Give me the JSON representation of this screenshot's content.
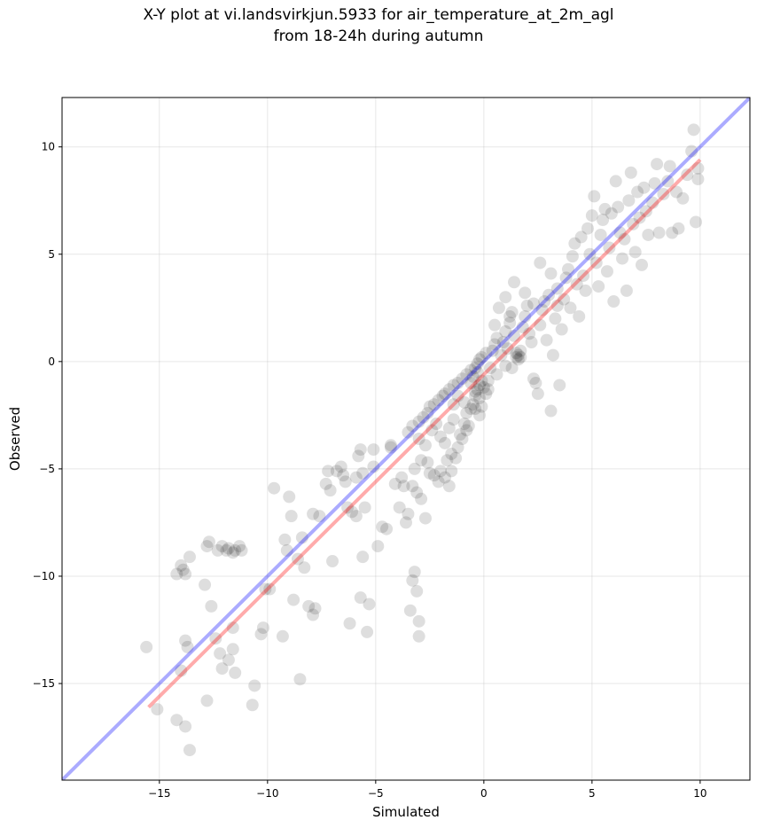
{
  "chart_data": {
    "type": "scatter",
    "title": "X-Y plot at vi.landsvirkjun.5933 for air_temperature_at_2m_agl",
    "subtitle": "from 18-24h during autumn",
    "xlabel": "Simulated",
    "ylabel": "Observed",
    "xlim": [
      -19.5,
      12.3
    ],
    "ylim": [
      -19.5,
      12.3
    ],
    "xticks": [
      -15,
      -10,
      -5,
      0,
      5,
      10
    ],
    "yticks": [
      -15,
      -10,
      -5,
      0,
      5,
      10
    ],
    "xtick_labels": [
      "−15",
      "−10",
      "−5",
      "0",
      "5",
      "10"
    ],
    "ytick_labels": [
      "−15",
      "−10",
      "−5",
      "0",
      "5",
      "10"
    ],
    "grid": true,
    "point_color": "#000000",
    "point_alpha": 0.13,
    "lines": [
      {
        "name": "1:1",
        "color": "#0000ff",
        "x": [
          -19.5,
          12.3
        ],
        "y": [
          -19.5,
          12.3
        ]
      },
      {
        "name": "fit",
        "color": "#ff0000",
        "x": [
          -15.5,
          10
        ],
        "y": [
          -16.1,
          9.4
        ]
      }
    ],
    "points": [
      [
        -15.6,
        -13.3
      ],
      [
        -15.1,
        -16.2
      ],
      [
        -14.2,
        -9.9
      ],
      [
        -14.0,
        -9.5
      ],
      [
        -13.9,
        -9.7
      ],
      [
        -13.8,
        -9.9
      ],
      [
        -13.6,
        -9.1
      ],
      [
        -14.0,
        -14.4
      ],
      [
        -13.8,
        -13.0
      ],
      [
        -13.7,
        -13.3
      ],
      [
        -14.2,
        -16.7
      ],
      [
        -13.8,
        -17.0
      ],
      [
        -13.6,
        -18.1
      ],
      [
        -12.9,
        -10.4
      ],
      [
        -12.8,
        -8.6
      ],
      [
        -12.7,
        -8.4
      ],
      [
        -12.6,
        -11.4
      ],
      [
        -12.4,
        -12.9
      ],
      [
        -12.3,
        -8.8
      ],
      [
        -12.1,
        -8.6
      ],
      [
        -11.9,
        -8.8
      ],
      [
        -11.8,
        -8.7
      ],
      [
        -11.6,
        -8.9
      ],
      [
        -11.5,
        -8.8
      ],
      [
        -11.3,
        -8.6
      ],
      [
        -11.2,
        -8.8
      ],
      [
        -12.2,
        -13.6
      ],
      [
        -12.1,
        -14.3
      ],
      [
        -11.8,
        -13.9
      ],
      [
        -11.6,
        -13.4
      ],
      [
        -11.5,
        -14.5
      ],
      [
        -11.6,
        -12.4
      ],
      [
        -12.8,
        -15.8
      ],
      [
        -10.7,
        -16.0
      ],
      [
        -10.6,
        -15.1
      ],
      [
        -10.3,
        -12.7
      ],
      [
        -10.2,
        -12.4
      ],
      [
        -10.1,
        -10.6
      ],
      [
        -9.9,
        -10.6
      ],
      [
        -9.7,
        -5.9
      ],
      [
        -9.3,
        -12.8
      ],
      [
        -9.2,
        -8.3
      ],
      [
        -9.1,
        -8.8
      ],
      [
        -9.0,
        -6.3
      ],
      [
        -8.9,
        -7.2
      ],
      [
        -8.8,
        -11.1
      ],
      [
        -8.6,
        -9.2
      ],
      [
        -8.5,
        -14.8
      ],
      [
        -8.4,
        -8.2
      ],
      [
        -8.3,
        -9.6
      ],
      [
        -8.1,
        -11.4
      ],
      [
        -7.9,
        -11.8
      ],
      [
        -7.8,
        -11.5
      ],
      [
        -7.9,
        -7.1
      ],
      [
        -7.6,
        -7.2
      ],
      [
        -7.3,
        -5.7
      ],
      [
        -7.2,
        -5.1
      ],
      [
        -7.1,
        -6.0
      ],
      [
        -7.0,
        -9.3
      ],
      [
        -6.8,
        -5.1
      ],
      [
        -6.6,
        -4.9
      ],
      [
        -6.5,
        -5.3
      ],
      [
        -6.4,
        -5.6
      ],
      [
        -6.2,
        -12.2
      ],
      [
        -6.1,
        -7.0
      ],
      [
        -5.9,
        -5.4
      ],
      [
        -5.8,
        -4.4
      ],
      [
        -5.7,
        -4.1
      ],
      [
        -5.6,
        -5.2
      ],
      [
        -5.5,
        -6.8
      ],
      [
        -5.3,
        -11.3
      ],
      [
        -5.4,
        -12.6
      ],
      [
        -5.6,
        -9.1
      ],
      [
        -5.7,
        -11.0
      ],
      [
        -5.1,
        -4.1
      ],
      [
        -4.9,
        -8.6
      ],
      [
        -4.7,
        -7.7
      ],
      [
        -4.5,
        -7.8
      ],
      [
        -4.3,
        -3.9
      ],
      [
        -4.1,
        -5.7
      ],
      [
        -3.9,
        -6.8
      ],
      [
        -3.8,
        -5.4
      ],
      [
        -3.7,
        -5.8
      ],
      [
        -3.6,
        -7.5
      ],
      [
        -3.5,
        -7.1
      ],
      [
        -3.4,
        -11.6
      ],
      [
        -3.3,
        -10.2
      ],
      [
        -3.2,
        -9.8
      ],
      [
        -3.1,
        -10.7
      ],
      [
        -3.0,
        -12.1
      ],
      [
        -3.0,
        -12.8
      ],
      [
        -3.2,
        -5.0
      ],
      [
        -3.3,
        -5.8
      ],
      [
        -3.1,
        -6.1
      ],
      [
        -2.9,
        -6.4
      ],
      [
        -2.7,
        -7.3
      ],
      [
        -2.5,
        -5.2
      ],
      [
        -2.6,
        -4.7
      ],
      [
        -2.3,
        -5.3
      ],
      [
        -2.1,
        -5.6
      ],
      [
        -2.0,
        -5.1
      ],
      [
        -1.8,
        -5.4
      ],
      [
        -1.6,
        -5.8
      ],
      [
        -1.5,
        -5.1
      ],
      [
        -3.5,
        -3.3
      ],
      [
        -3.3,
        -3.0
      ],
      [
        -3.0,
        -2.8
      ],
      [
        -2.8,
        -2.6
      ],
      [
        -2.6,
        -2.4
      ],
      [
        -2.5,
        -2.1
      ],
      [
        -2.3,
        -2.0
      ],
      [
        -2.1,
        -1.8
      ],
      [
        -1.9,
        -1.6
      ],
      [
        -1.8,
        -1.5
      ],
      [
        -1.6,
        -1.3
      ],
      [
        -1.4,
        -1.1
      ],
      [
        -1.2,
        -1.0
      ],
      [
        -1.0,
        -0.8
      ],
      [
        -0.8,
        -0.6
      ],
      [
        -0.6,
        -0.4
      ],
      [
        -0.4,
        -0.3
      ],
      [
        -0.3,
        -0.1
      ],
      [
        -0.2,
        0.1
      ],
      [
        -0.1,
        0.2
      ],
      [
        0.1,
        0.4
      ],
      [
        -3.0,
        -3.6
      ],
      [
        -2.7,
        -3.9
      ],
      [
        -2.4,
        -3.2
      ],
      [
        -2.2,
        -2.9
      ],
      [
        -2.0,
        -3.5
      ],
      [
        -1.8,
        -3.8
      ],
      [
        -1.6,
        -3.1
      ],
      [
        -1.4,
        -2.7
      ],
      [
        -1.2,
        -4.0
      ],
      [
        -1.1,
        -3.4
      ],
      [
        -0.9,
        -2.9
      ],
      [
        -0.8,
        -2.4
      ],
      [
        -0.7,
        -3.0
      ],
      [
        -0.6,
        -2.2
      ],
      [
        -0.5,
        -2.0
      ],
      [
        -0.4,
        -1.6
      ],
      [
        -0.3,
        -1.3
      ],
      [
        -0.2,
        -1.1
      ],
      [
        -0.1,
        -0.9
      ],
      [
        0.0,
        -1.2
      ],
      [
        -1.7,
        -4.6
      ],
      [
        -1.5,
        -4.3
      ],
      [
        -1.3,
        -4.5
      ],
      [
        -1.0,
        -3.6
      ],
      [
        -0.8,
        -3.2
      ],
      [
        -0.6,
        -1.0
      ],
      [
        -0.5,
        -0.7
      ],
      [
        -0.4,
        -1.4
      ],
      [
        -0.3,
        -0.5
      ],
      [
        -0.2,
        -1.7
      ],
      [
        -0.1,
        -2.1
      ],
      [
        0.1,
        -1.5
      ],
      [
        0.2,
        -0.9
      ],
      [
        0.3,
        -0.3
      ],
      [
        0.4,
        0.5
      ],
      [
        0.5,
        0.8
      ],
      [
        0.6,
        1.1
      ],
      [
        0.8,
        0.3
      ],
      [
        0.9,
        0.9
      ],
      [
        1.0,
        1.4
      ],
      [
        1.1,
        0.6
      ],
      [
        1.2,
        1.8
      ],
      [
        1.3,
        2.3
      ],
      [
        1.4,
        1.2
      ],
      [
        1.5,
        0.2
      ],
      [
        1.5,
        0.4
      ],
      [
        1.6,
        0.1
      ],
      [
        1.6,
        0.3
      ],
      [
        1.7,
        0.5
      ],
      [
        1.7,
        0.2
      ],
      [
        1.8,
        1.6
      ],
      [
        1.9,
        2.1
      ],
      [
        2.0,
        2.6
      ],
      [
        2.1,
        1.3
      ],
      [
        2.2,
        0.9
      ],
      [
        2.3,
        -0.8
      ],
      [
        2.4,
        -1.0
      ],
      [
        2.5,
        -1.5
      ],
      [
        2.6,
        1.7
      ],
      [
        2.7,
        2.4
      ],
      [
        2.8,
        2.8
      ],
      [
        2.9,
        1.0
      ],
      [
        3.0,
        3.1
      ],
      [
        3.1,
        -2.3
      ],
      [
        3.2,
        0.3
      ],
      [
        3.3,
        2.0
      ],
      [
        3.4,
        3.4
      ],
      [
        3.5,
        -1.1
      ],
      [
        3.6,
        1.5
      ],
      [
        3.7,
        2.9
      ],
      [
        3.8,
        3.9
      ],
      [
        3.9,
        4.3
      ],
      [
        4.0,
        2.5
      ],
      [
        4.1,
        4.9
      ],
      [
        4.2,
        5.5
      ],
      [
        4.3,
        3.6
      ],
      [
        4.4,
        2.1
      ],
      [
        4.5,
        5.8
      ],
      [
        4.6,
        4.0
      ],
      [
        4.7,
        3.3
      ],
      [
        4.8,
        6.2
      ],
      [
        4.9,
        5.0
      ],
      [
        5.0,
        6.8
      ],
      [
        5.1,
        7.7
      ],
      [
        5.2,
        4.6
      ],
      [
        5.3,
        3.5
      ],
      [
        5.4,
        5.9
      ],
      [
        5.5,
        6.6
      ],
      [
        5.6,
        7.1
      ],
      [
        5.7,
        4.2
      ],
      [
        5.8,
        5.3
      ],
      [
        5.9,
        6.9
      ],
      [
        6.0,
        2.8
      ],
      [
        6.1,
        8.4
      ],
      [
        6.2,
        7.2
      ],
      [
        6.3,
        6.0
      ],
      [
        6.4,
        4.8
      ],
      [
        6.5,
        5.7
      ],
      [
        6.6,
        3.3
      ],
      [
        6.7,
        7.5
      ],
      [
        6.8,
        8.8
      ],
      [
        6.9,
        6.4
      ],
      [
        7.0,
        5.1
      ],
      [
        7.1,
        7.9
      ],
      [
        7.2,
        6.7
      ],
      [
        7.3,
        4.5
      ],
      [
        7.4,
        8.1
      ],
      [
        7.5,
        7.0
      ],
      [
        7.6,
        5.9
      ],
      [
        7.8,
        7.4
      ],
      [
        7.9,
        8.3
      ],
      [
        8.0,
        9.2
      ],
      [
        8.1,
        6.0
      ],
      [
        8.3,
        7.8
      ],
      [
        8.5,
        8.4
      ],
      [
        8.6,
        9.1
      ],
      [
        8.7,
        6.0
      ],
      [
        8.9,
        7.9
      ],
      [
        9.0,
        6.2
      ],
      [
        9.2,
        7.6
      ],
      [
        9.4,
        8.7
      ],
      [
        9.7,
        10.8
      ],
      [
        9.8,
        6.5
      ],
      [
        9.9,
        8.5
      ],
      [
        9.9,
        9.0
      ],
      [
        9.6,
        9.8
      ],
      [
        1.3,
        -0.3
      ],
      [
        1.0,
        -0.2
      ],
      [
        0.6,
        -0.6
      ],
      [
        0.2,
        -1.3
      ],
      [
        -0.2,
        -2.5
      ],
      [
        -0.4,
        -2.2
      ],
      [
        -0.9,
        -1.9
      ],
      [
        -1.2,
        -1.6
      ],
      [
        -1.4,
        -2.0
      ],
      [
        -2.9,
        -4.6
      ],
      [
        -4.3,
        -4.0
      ],
      [
        -5.1,
        -4.9
      ],
      [
        -5.9,
        -7.2
      ],
      [
        -6.3,
        -6.8
      ],
      [
        0.5,
        1.7
      ],
      [
        0.7,
        2.5
      ],
      [
        1.0,
        3.0
      ],
      [
        1.2,
        2.1
      ],
      [
        1.4,
        3.7
      ],
      [
        1.9,
        3.2
      ],
      [
        2.3,
        2.7
      ],
      [
        2.6,
        4.6
      ],
      [
        3.1,
        4.1
      ],
      [
        3.4,
        2.6
      ]
    ]
  }
}
